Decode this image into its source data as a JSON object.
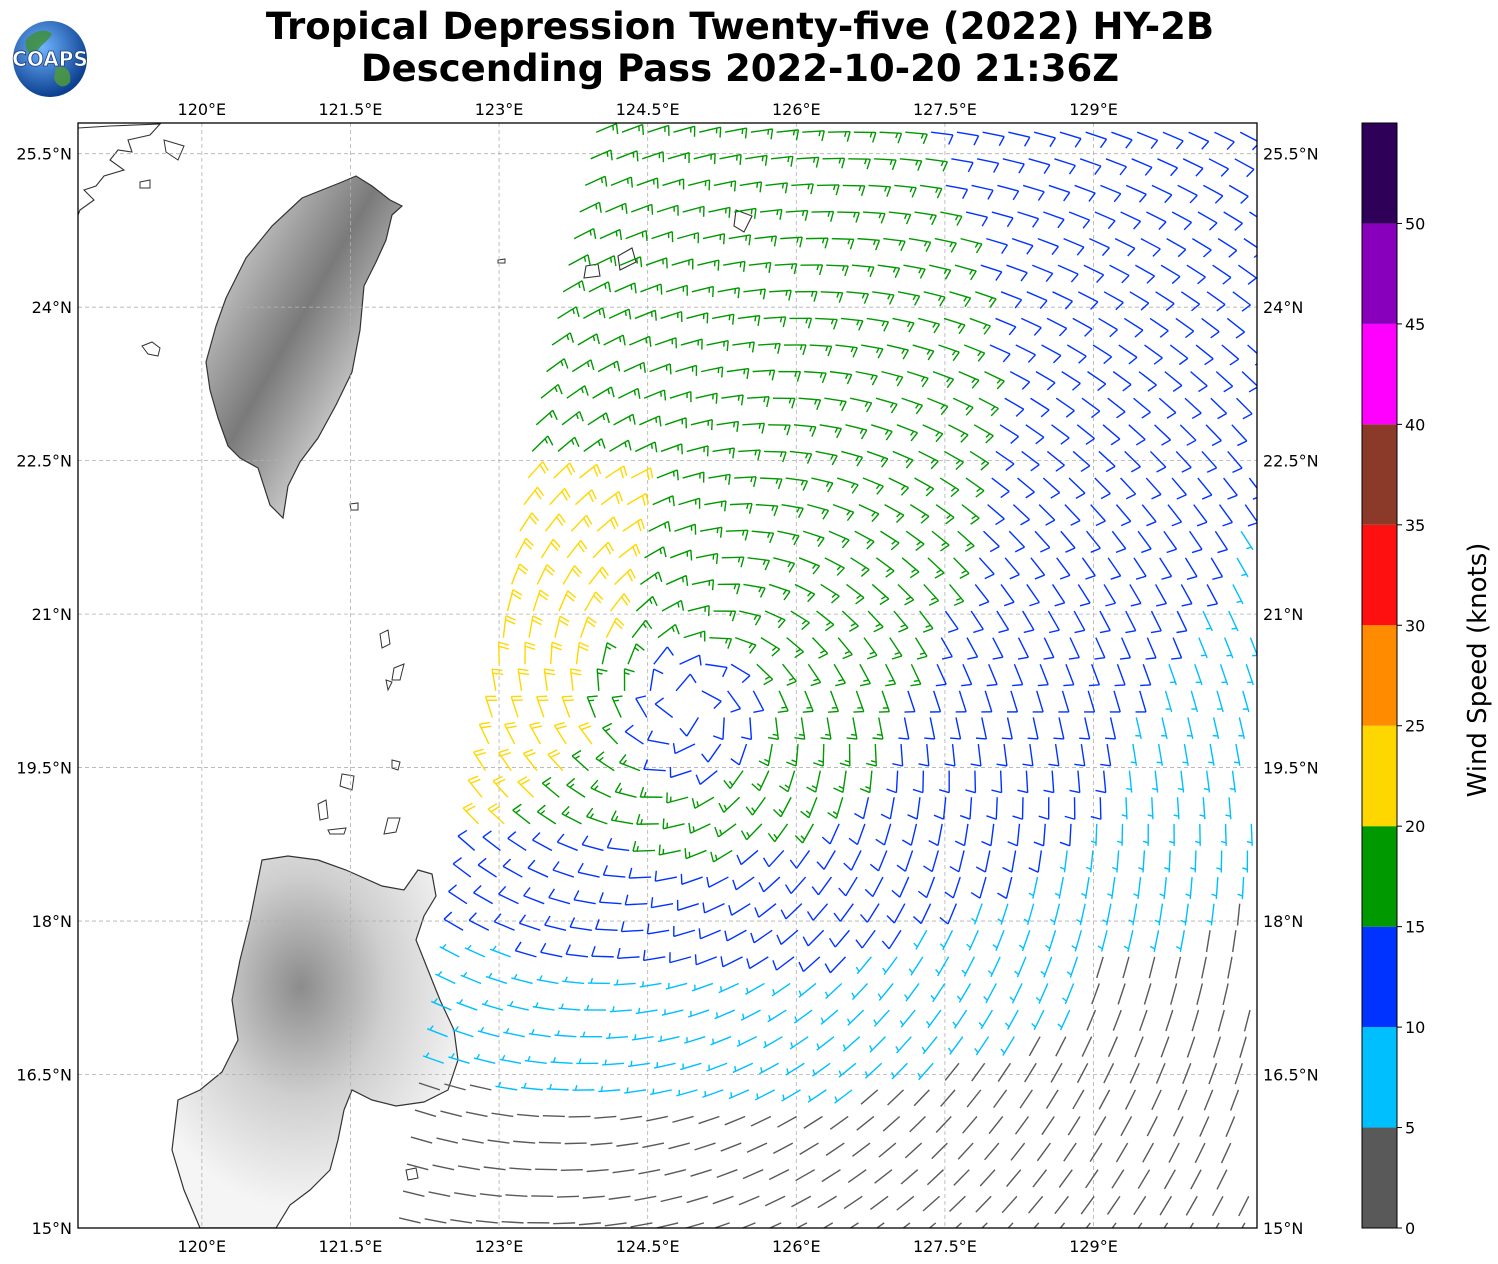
{
  "header": {
    "title_line1": "Tropical Depression Twenty-five (2022) HY-2B",
    "title_line2": "Descending Pass 2022-10-20 21:36Z",
    "logo_text": "COAPS"
  },
  "map": {
    "lon_range": [
      118.75,
      130.65
    ],
    "lat_range": [
      15.0,
      25.8
    ],
    "lon_ticks": [
      "120°E",
      "121.5°E",
      "123°E",
      "124.5°E",
      "126°E",
      "127.5°E",
      "129°E"
    ],
    "lat_ticks": [
      "15°N",
      "16.5°N",
      "18°N",
      "19.5°N",
      "21°N",
      "22.5°N",
      "24°N",
      "25.5°N"
    ],
    "storm_center": {
      "lon": 124.9,
      "lat": 20.1
    },
    "swath_west_edge": [
      [
        122.8,
        19.0
      ],
      [
        123.0,
        20.5
      ],
      [
        123.4,
        23.0
      ],
      [
        124.0,
        25.8
      ]
    ]
  },
  "colorbar": {
    "label": "Wind Speed (knots)",
    "ticks": [
      "0",
      "5",
      "10",
      "15",
      "20",
      "25",
      "30",
      "35",
      "40",
      "45",
      "50"
    ],
    "colors": [
      "#595959",
      "#00bfff",
      "#0033ff",
      "#009900",
      "#ffd700",
      "#ff8c00",
      "#ff1010",
      "#8b3a2a",
      "#ff00ff",
      "#8800bb",
      "#2e0058"
    ],
    "max": 55
  },
  "icons": {
    "logo": "coaps-globe-logo"
  }
}
